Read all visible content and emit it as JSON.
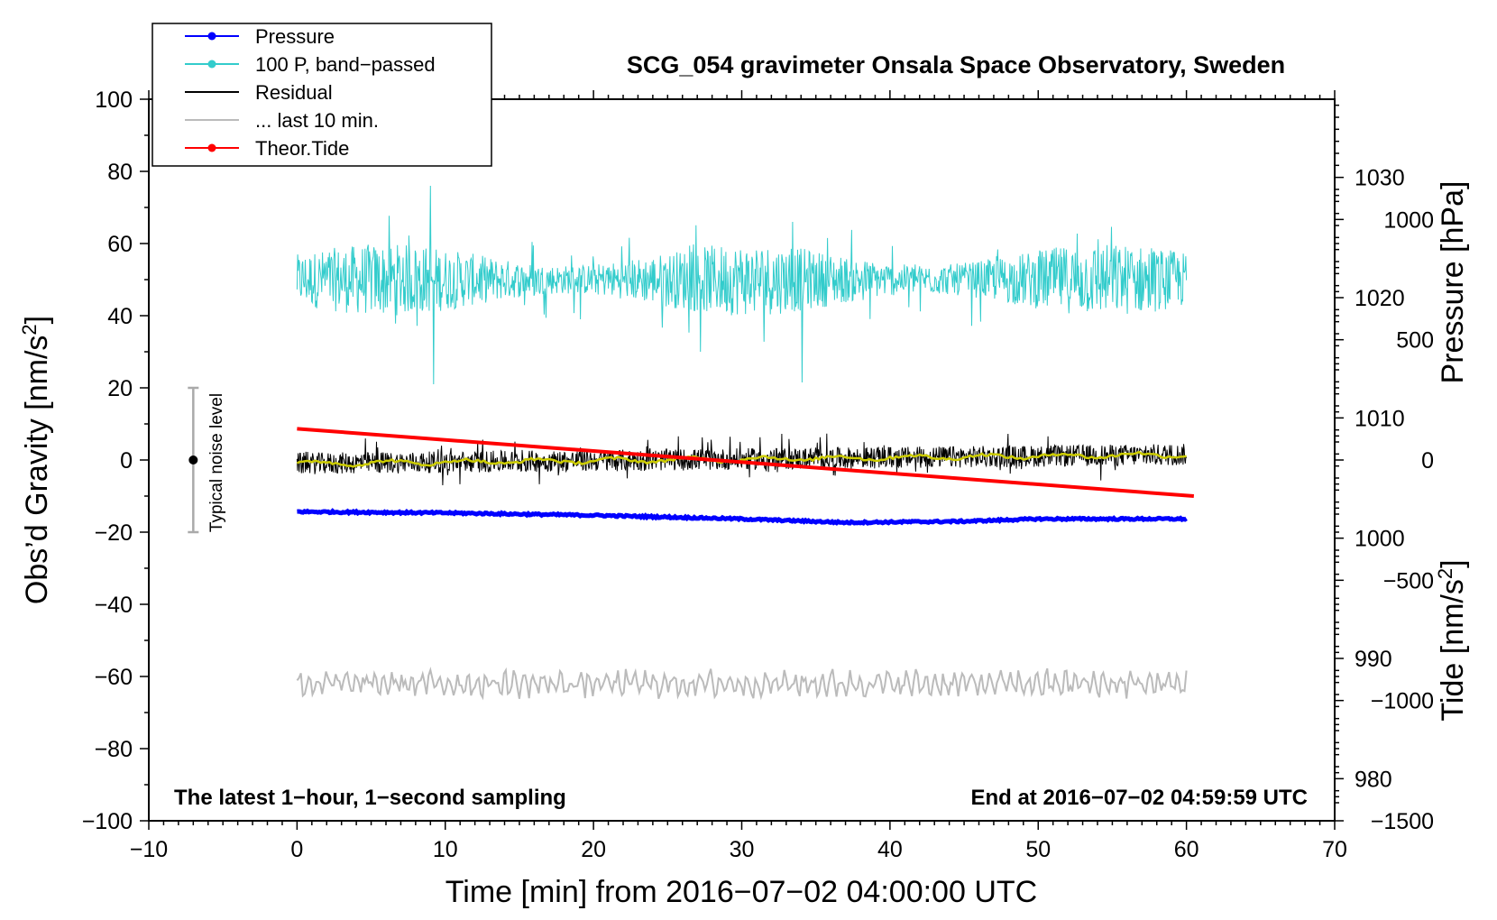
{
  "chart_data": {
    "type": "line",
    "title": "SCG_054 gravimeter Onsala Space Observatory, Sweden",
    "xlabel": "Time [min] from 2016−07−02 04:00:00 UTC",
    "ylabel": "Obs’d Gravity [nm/s²]",
    "ylabel_parts": {
      "main": "Obs’d Gravity [nm/s",
      "sup": "2",
      "end": "]"
    },
    "y2label": "Pressure [hPa]",
    "y3label_parts": {
      "main": "Tide [nm/s",
      "sup": "2",
      "end": "]"
    },
    "xlim": [
      -10,
      70
    ],
    "ylim": [
      -100,
      100
    ],
    "pressure_range": [
      976.5,
      1036.5
    ],
    "tide_range": [
      -1500,
      1500
    ],
    "x_ticks": [
      "−10",
      "0",
      "10",
      "20",
      "30",
      "40",
      "50",
      "60",
      "70"
    ],
    "x_tick_values": [
      -10,
      0,
      10,
      20,
      30,
      40,
      50,
      60,
      70
    ],
    "y_ticks": [
      "100",
      "80",
      "60",
      "40",
      "20",
      "0",
      "−20",
      "−40",
      "−60",
      "−80",
      "−100"
    ],
    "y_tick_values": [
      100,
      80,
      60,
      40,
      20,
      0,
      -20,
      -40,
      -60,
      -80,
      -100
    ],
    "pressure_ticks": [
      "1030",
      "1020",
      "1010",
      "1000",
      "990",
      "980"
    ],
    "pressure_tick_values": [
      1030,
      1020,
      1010,
      1000,
      990,
      980
    ],
    "tide_ticks": [
      "1000",
      "500",
      "0",
      "−500",
      "−1000",
      "−1500"
    ],
    "tide_tick_values": [
      1000,
      500,
      0,
      -500,
      -1000,
      -1500
    ],
    "legend": {
      "position": "top-left",
      "entries": [
        {
          "label": "Pressure",
          "color": "#0000ff",
          "marker": true
        },
        {
          "label": "100 P, band−passed",
          "color": "#33cccc",
          "marker": true
        },
        {
          "label": "Residual",
          "color": "#000000",
          "marker": false
        },
        {
          "label": "... last 10 min.",
          "color": "#bbbbbb",
          "marker": false
        },
        {
          "label": "Theor.Tide",
          "color": "#ff0000",
          "marker": true
        }
      ]
    },
    "series": [
      {
        "name": "Pressure",
        "axis": "pressure_hPa",
        "color": "#0000ff",
        "x": [
          0,
          10,
          20,
          30,
          37,
          45,
          50,
          60
        ],
        "values": [
          1002.2,
          1002.1,
          1001.9,
          1001.6,
          1001.3,
          1001.4,
          1001.6,
          1001.6
        ]
      },
      {
        "name": "100 P, band-passed",
        "axis": "gravity",
        "color": "#33cccc",
        "center": 50,
        "typical_range": [
          38,
          62
        ],
        "min": 21,
        "max": 76,
        "x_range": [
          0,
          60
        ]
      },
      {
        "name": "Residual",
        "axis": "gravity",
        "color": "#000000",
        "trend_x": [
          0,
          60
        ],
        "trend": [
          -1,
          1.5
        ],
        "typical_range": [
          -5,
          5
        ],
        "x_range": [
          0,
          60
        ]
      },
      {
        "name": "Residual smoothed",
        "axis": "gravity",
        "color": "#cccc00",
        "trend_x": [
          0,
          60
        ],
        "trend": [
          -1,
          1.5
        ]
      },
      {
        "name": "... last 10 min.",
        "axis": "gravity_offset",
        "color": "#bbbbbb",
        "center": -62,
        "typical_range": [
          -66,
          -57
        ],
        "x_range": [
          0,
          60
        ]
      },
      {
        "name": "Theor.Tide",
        "axis": "tide",
        "color": "#ff0000",
        "x": [
          0,
          60.5
        ],
        "values": [
          130,
          -150
        ]
      }
    ],
    "noise_level": {
      "x": -7,
      "center": 0,
      "range": [
        -20,
        20
      ],
      "label": "Typical noise level"
    },
    "annotations": {
      "bottom_left": "The latest 1−hour, 1−second sampling",
      "bottom_right": "End at 2016−07−02 04:59:59 UTC"
    },
    "colors": {
      "pressure": "#0000ff",
      "band_passed": "#33cccc",
      "residual": "#000000",
      "smoothed": "#cccc00",
      "last10": "#bbbbbb",
      "tide": "#ff0000",
      "noise_bar": "#aaaaaa"
    }
  }
}
